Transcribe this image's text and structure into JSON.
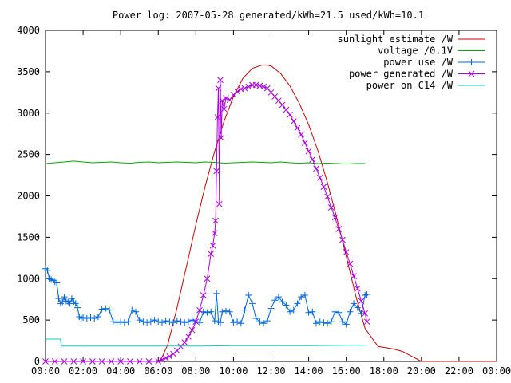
{
  "chart_data": {
    "type": "line",
    "title": "Power log: 2007-05-28 generated/kWh=21.5 used/kWh=10.1",
    "xlabel": "",
    "ylabel": "",
    "xlim": [
      0,
      24
    ],
    "ylim": [
      0,
      4000
    ],
    "x_ticks": [
      0,
      2,
      4,
      6,
      8,
      10,
      12,
      14,
      16,
      18,
      20,
      22,
      24
    ],
    "x_tick_labels": [
      "00:00",
      "02:00",
      "04:00",
      "06:00",
      "08:00",
      "10:00",
      "12:00",
      "14:00",
      "16:00",
      "18:00",
      "20:00",
      "22:00",
      "00:00"
    ],
    "y_ticks": [
      0,
      500,
      1000,
      1500,
      2000,
      2500,
      3000,
      3500,
      4000
    ],
    "y_tick_labels": [
      "0",
      "500",
      "1000",
      "1500",
      "2000",
      "2500",
      "3000",
      "3500",
      "4000"
    ],
    "grid": false,
    "legend_position": "top-right",
    "series": [
      {
        "name": "sunlight estimate /W",
        "color": "#cc0000",
        "style": "line",
        "x": [
          0,
          6.1,
          6.5,
          7,
          7.5,
          8,
          8.5,
          9,
          9.5,
          10,
          10.5,
          11,
          11.5,
          11.8,
          12,
          12.5,
          13,
          13.5,
          14,
          14.5,
          15,
          15.5,
          16,
          16.5,
          17,
          17.5,
          17.7,
          18,
          18.5,
          19,
          19.5,
          20,
          24
        ],
        "y": [
          0,
          0,
          200,
          650,
          1150,
          1650,
          2120,
          2540,
          2900,
          3200,
          3420,
          3540,
          3580,
          3580,
          3570,
          3480,
          3330,
          3120,
          2860,
          2540,
          2160,
          1730,
          1270,
          800,
          400,
          240,
          180,
          170,
          150,
          120,
          60,
          0,
          0
        ]
      },
      {
        "name": "voltage /0.1V",
        "color": "#00aa00",
        "style": "line",
        "x": [
          0,
          0.5,
          1,
          1.5,
          2,
          2.5,
          3,
          3.5,
          4,
          4.5,
          5,
          5.5,
          6,
          6.5,
          7,
          7.5,
          8,
          8.5,
          9,
          9.5,
          10,
          10.5,
          11,
          11.5,
          12,
          12.5,
          13,
          13.5,
          14,
          14.5,
          15,
          15.5,
          16,
          16.5,
          17
        ],
        "y": [
          2390,
          2400,
          2410,
          2420,
          2410,
          2400,
          2405,
          2410,
          2400,
          2395,
          2405,
          2410,
          2400,
          2405,
          2410,
          2405,
          2400,
          2410,
          2405,
          2395,
          2400,
          2405,
          2410,
          2405,
          2400,
          2410,
          2400,
          2395,
          2400,
          2390,
          2395,
          2390,
          2385,
          2390,
          2390
        ]
      },
      {
        "name": "power use /W",
        "color": "#0066dd",
        "style": "linespoints",
        "marker": "plus",
        "x": [
          0,
          0.1,
          0.2,
          0.3,
          0.4,
          0.5,
          0.6,
          0.7,
          0.8,
          0.9,
          1.0,
          1.1,
          1.2,
          1.3,
          1.4,
          1.5,
          1.6,
          1.7,
          1.8,
          1.9,
          2.0,
          2.2,
          2.4,
          2.6,
          2.8,
          3.0,
          3.2,
          3.4,
          3.6,
          3.8,
          4.0,
          4.2,
          4.4,
          4.6,
          4.8,
          5.0,
          5.2,
          5.4,
          5.6,
          5.8,
          6.0,
          6.2,
          6.4,
          6.6,
          6.8,
          7.0,
          7.2,
          7.4,
          7.6,
          7.8,
          8.0,
          8.2,
          8.4,
          8.6,
          8.8,
          9.0,
          9.1,
          9.2,
          9.3,
          9.4,
          9.6,
          9.8,
          10.0,
          10.2,
          10.4,
          10.6,
          10.8,
          11.0,
          11.2,
          11.4,
          11.6,
          11.8,
          12.0,
          12.2,
          12.4,
          12.6,
          12.8,
          13.0,
          13.2,
          13.4,
          13.6,
          13.8,
          14.0,
          14.2,
          14.4,
          14.6,
          14.8,
          15.0,
          15.2,
          15.4,
          15.6,
          15.8,
          16.0,
          16.2,
          16.4,
          16.6,
          16.8,
          17.0,
          17.1
        ],
        "y": [
          1120,
          1100,
          1000,
          990,
          980,
          960,
          950,
          760,
          700,
          720,
          780,
          730,
          720,
          700,
          760,
          720,
          700,
          650,
          540,
          520,
          530,
          520,
          530,
          520,
          540,
          630,
          640,
          620,
          480,
          470,
          480,
          470,
          480,
          620,
          600,
          500,
          480,
          470,
          480,
          500,
          480,
          470,
          490,
          480,
          470,
          490,
          480,
          470,
          480,
          500,
          480,
          470,
          600,
          590,
          600,
          490,
          820,
          480,
          470,
          600,
          610,
          600,
          470,
          480,
          460,
          620,
          800,
          700,
          520,
          480,
          460,
          490,
          640,
          740,
          780,
          720,
          680,
          600,
          620,
          700,
          780,
          800,
          590,
          600,
          460,
          480,
          470,
          460,
          480,
          600,
          590,
          480,
          450,
          600,
          700,
          650,
          580,
          800,
          810
        ]
      },
      {
        "name": "power generated /W",
        "color": "#aa00dd",
        "style": "linespoints",
        "marker": "cross",
        "x": [
          0,
          0.5,
          1,
          1.5,
          2,
          2.5,
          3,
          3.5,
          4,
          4.5,
          5,
          5.5,
          6,
          6.2,
          6.4,
          6.6,
          6.8,
          7.0,
          7.2,
          7.4,
          7.6,
          7.8,
          8.0,
          8.2,
          8.4,
          8.6,
          8.8,
          8.9,
          9.0,
          9.05,
          9.1,
          9.15,
          9.2,
          9.25,
          9.3,
          9.35,
          9.4,
          9.5,
          9.6,
          9.8,
          10.0,
          10.2,
          10.4,
          10.6,
          10.8,
          11.0,
          11.2,
          11.4,
          11.6,
          11.8,
          12.0,
          12.2,
          12.4,
          12.6,
          12.8,
          13.0,
          13.2,
          13.4,
          13.6,
          13.8,
          14.0,
          14.2,
          14.4,
          14.6,
          14.8,
          15.0,
          15.2,
          15.4,
          15.6,
          15.8,
          16.0,
          16.2,
          16.4,
          16.6,
          16.8,
          17.0,
          17.1
        ],
        "y": [
          0,
          0,
          0,
          0,
          0,
          0,
          0,
          0,
          0,
          0,
          0,
          0,
          0,
          20,
          40,
          60,
          90,
          130,
          180,
          230,
          300,
          380,
          480,
          620,
          800,
          1000,
          1300,
          1400,
          1550,
          1700,
          2300,
          2950,
          3300,
          1900,
          3400,
          2700,
          3150,
          3050,
          3180,
          3160,
          3220,
          3260,
          3290,
          3300,
          3320,
          3340,
          3340,
          3330,
          3320,
          3300,
          3250,
          3200,
          3150,
          3100,
          3040,
          2980,
          2900,
          2820,
          2740,
          2640,
          2540,
          2440,
          2330,
          2220,
          2110,
          1990,
          1860,
          1740,
          1600,
          1470,
          1320,
          1180,
          1030,
          880,
          730,
          580,
          480
        ]
      },
      {
        "name": "power on C14 /W",
        "color": "#00cccc",
        "style": "line",
        "x": [
          0,
          0.8,
          0.85,
          2,
          4,
          6,
          8,
          10,
          12,
          14,
          16,
          17
        ],
        "y": [
          270,
          270,
          185,
          185,
          185,
          185,
          185,
          190,
          190,
          190,
          195,
          195
        ]
      }
    ]
  }
}
